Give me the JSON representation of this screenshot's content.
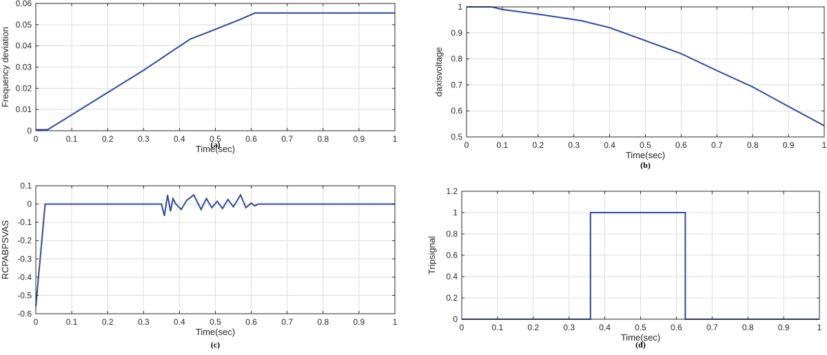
{
  "chart_data": [
    {
      "type": "line",
      "caption": "(a)",
      "xlabel": "Time(sec)",
      "ylabel": "Frequency deviation",
      "xlim": [
        0,
        1
      ],
      "ylim": [
        0,
        0.06
      ],
      "xticks": [
        0,
        0.1,
        0.2,
        0.3,
        0.4,
        0.5,
        0.6,
        0.7,
        0.8,
        0.9,
        1
      ],
      "yticks": [
        0,
        0.01,
        0.02,
        0.03,
        0.04,
        0.05,
        0.06
      ],
      "xtick_labels": [
        "0",
        "0.1",
        "0.2",
        "0.3",
        "0.4",
        "0.5",
        "0.6",
        "0.7",
        "0.8",
        "0.9",
        "1"
      ],
      "ytick_labels": [
        "0",
        "0.01",
        "0.02",
        "0.03",
        "0.04",
        "0.05",
        "0.06"
      ],
      "grid": true,
      "series": [
        {
          "color": "#2c4a9e",
          "x": [
            0,
            0.033,
            0.1,
            0.2,
            0.3,
            0.43,
            0.47,
            0.57,
            0.61,
            1.0
          ],
          "y": [
            0.0005,
            0.0005,
            0.0075,
            0.018,
            0.0285,
            0.0432,
            0.0458,
            0.0525,
            0.0555,
            0.0555
          ]
        }
      ]
    },
    {
      "type": "line",
      "caption": "(b)",
      "xlabel": "Time(sec)",
      "ylabel": "daxisvoltage",
      "xlim": [
        0,
        1
      ],
      "ylim": [
        0.5,
        1
      ],
      "xticks": [
        0,
        0.1,
        0.2,
        0.3,
        0.4,
        0.5,
        0.6,
        0.7,
        0.8,
        0.9,
        1
      ],
      "yticks": [
        0.5,
        0.6,
        0.7,
        0.8,
        0.9,
        1
      ],
      "xtick_labels": [
        "0",
        "0.1",
        "0.2",
        "0.3",
        "0.4",
        "0.5",
        "0.6",
        "0.7",
        "0.8",
        "0.9",
        "1"
      ],
      "ytick_labels": [
        "0.5",
        "0.6",
        "0.7",
        "0.8",
        "0.9",
        "1"
      ],
      "grid": true,
      "series": [
        {
          "color": "#2c4a9e",
          "x": [
            0,
            0.07,
            0.1,
            0.2,
            0.32,
            0.4,
            0.5,
            0.6,
            0.7,
            0.8,
            0.9,
            1.0
          ],
          "y": [
            1.0,
            1.0,
            0.99,
            0.972,
            0.947,
            0.92,
            0.87,
            0.82,
            0.755,
            0.692,
            0.617,
            0.543
          ]
        }
      ]
    },
    {
      "type": "line",
      "caption": "(c)",
      "xlabel": "Time(sec)",
      "ylabel": "RCPABPSVAS",
      "xlim": [
        0,
        1
      ],
      "ylim": [
        -0.6,
        0.1
      ],
      "xticks": [
        0,
        0.1,
        0.2,
        0.3,
        0.4,
        0.5,
        0.6,
        0.7,
        0.8,
        0.9,
        1
      ],
      "yticks": [
        -0.6,
        -0.5,
        -0.4,
        -0.3,
        -0.2,
        -0.1,
        0,
        0.1
      ],
      "xtick_labels": [
        "0",
        "0.1",
        "0.2",
        "0.3",
        "0.4",
        "0.5",
        "0.6",
        "0.7",
        "0.8",
        "0.9",
        "1"
      ],
      "ytick_labels": [
        "-0.6",
        "-0.5",
        "-0.4",
        "-0.3",
        "-0.2",
        "-0.1",
        "0",
        "0.1"
      ],
      "grid": true,
      "series": [
        {
          "color": "#2c4a9e",
          "x": [
            0,
            0.026,
            0.03,
            0.26,
            0.35,
            0.358,
            0.367,
            0.375,
            0.382,
            0.39,
            0.405,
            0.42,
            0.44,
            0.46,
            0.475,
            0.49,
            0.505,
            0.52,
            0.535,
            0.55,
            0.57,
            0.585,
            0.6,
            0.61,
            0.62,
            1.0
          ],
          "y": [
            -0.56,
            0.0,
            0.0,
            0.0,
            0.0,
            -0.065,
            0.05,
            -0.04,
            0.03,
            0.0,
            -0.03,
            0.02,
            0.05,
            -0.03,
            0.03,
            -0.02,
            0.015,
            -0.025,
            0.025,
            -0.015,
            0.05,
            -0.02,
            0.005,
            -0.01,
            0.0,
            0.0
          ]
        }
      ]
    },
    {
      "type": "line",
      "caption": "(d)",
      "xlabel": "Time(sec)",
      "ylabel": "Tripsignal",
      "xlim": [
        0,
        1
      ],
      "ylim": [
        0,
        1.2
      ],
      "xticks": [
        0,
        0.1,
        0.2,
        0.3,
        0.4,
        0.5,
        0.6,
        0.7,
        0.8,
        0.9,
        1
      ],
      "yticks": [
        0,
        0.2,
        0.4,
        0.6,
        0.8,
        1,
        1.2
      ],
      "xtick_labels": [
        "0",
        "0.1",
        "0.2",
        "0.3",
        "0.4",
        "0.5",
        "0.6",
        "0.7",
        "0.8",
        "0.9",
        "1"
      ],
      "ytick_labels": [
        "0",
        "0.2",
        "0.4",
        "0.6",
        "0.8",
        "1",
        "1.2"
      ],
      "grid": true,
      "series": [
        {
          "color": "#2c4a9e",
          "x": [
            0,
            0.36,
            0.36,
            0.625,
            0.625,
            1.0
          ],
          "y": [
            0,
            0,
            1,
            1,
            0,
            0
          ]
        }
      ]
    }
  ]
}
